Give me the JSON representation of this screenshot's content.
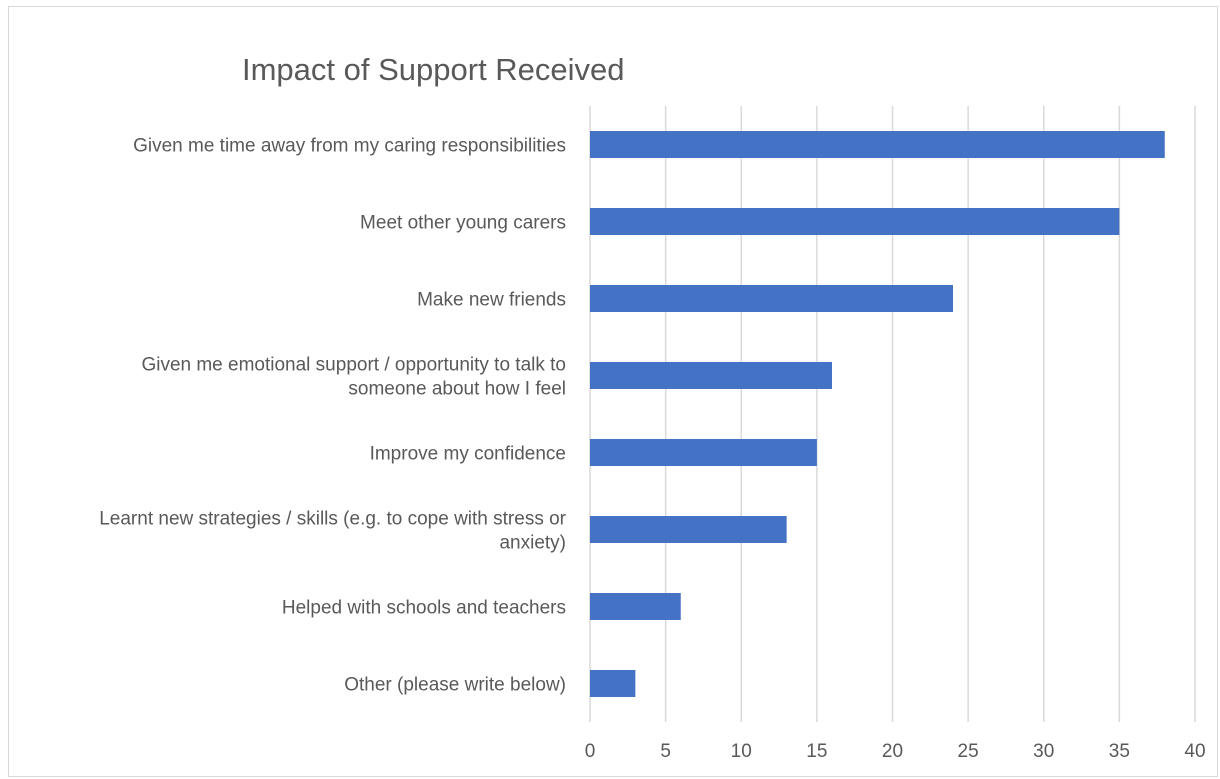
{
  "chart_data": {
    "type": "bar",
    "orientation": "horizontal",
    "title": "Impact of Support Received",
    "xlabel": "",
    "ylabel": "",
    "xlim": [
      0,
      40
    ],
    "x_ticks": [
      0,
      5,
      10,
      15,
      20,
      25,
      30,
      35,
      40
    ],
    "grid": "vertical",
    "legend": "none",
    "categories": [
      [
        "Given me time away from my caring responsibilities"
      ],
      [
        "Meet other young carers"
      ],
      [
        "Make new friends"
      ],
      [
        "Given me emotional support / opportunity to talk to",
        "someone about how I feel"
      ],
      [
        "Improve my confidence"
      ],
      [
        "Learnt new strategies / skills (e.g. to cope with stress or",
        "anxiety)"
      ],
      [
        "Helped with schools and teachers"
      ],
      [
        "Other (please write below)"
      ]
    ],
    "values": [
      38,
      35,
      24,
      16,
      15,
      13,
      6,
      3
    ],
    "colors": {
      "bar": "#4472c4",
      "grid": "#d9d9d9",
      "text": "#595959"
    }
  }
}
